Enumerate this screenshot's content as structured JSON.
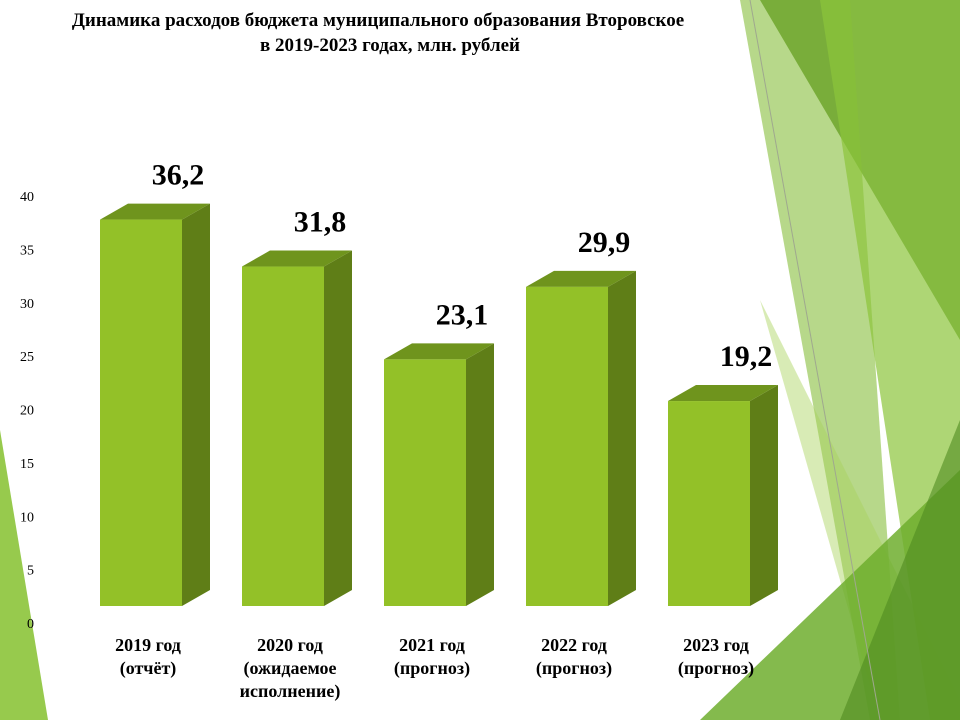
{
  "colors": {
    "bar_front": "#93c128",
    "bar_side": "#5f7e17",
    "bar_top": "#6f941d",
    "decor_dark": "#5f8f2f",
    "decor_mid": "#7cb82a",
    "decor_light": "#a9d35a"
  },
  "chart_data": {
    "type": "bar",
    "title": "Динамика расходов бюджета муниципального образования Второвское в 2019-2023 годах, млн. рублей",
    "title_lines": [
      "Динамика расходов бюджета муниципального образования Второвское",
      "в 2019-2023 годах, млн. рублей"
    ],
    "categories": [
      [
        "2019 год",
        "(отчёт)"
      ],
      [
        "2020 год",
        "(ожидаемое",
        "исполнение)"
      ],
      [
        "2021 год",
        "(прогноз)"
      ],
      [
        "2022 год",
        "(прогноз)"
      ],
      [
        "2023 год",
        "(прогноз)"
      ]
    ],
    "values": [
      36.2,
      31.8,
      23.1,
      29.9,
      19.2
    ],
    "data_labels": [
      "36,2",
      "31,8",
      "23,1",
      "29,9",
      "19,2"
    ],
    "ylim": [
      0,
      40
    ],
    "yticks": [
      "0",
      "5",
      "10",
      "15",
      "20",
      "25",
      "30",
      "35",
      "40"
    ],
    "grid": false,
    "legend": "none",
    "style": "3d-column"
  }
}
